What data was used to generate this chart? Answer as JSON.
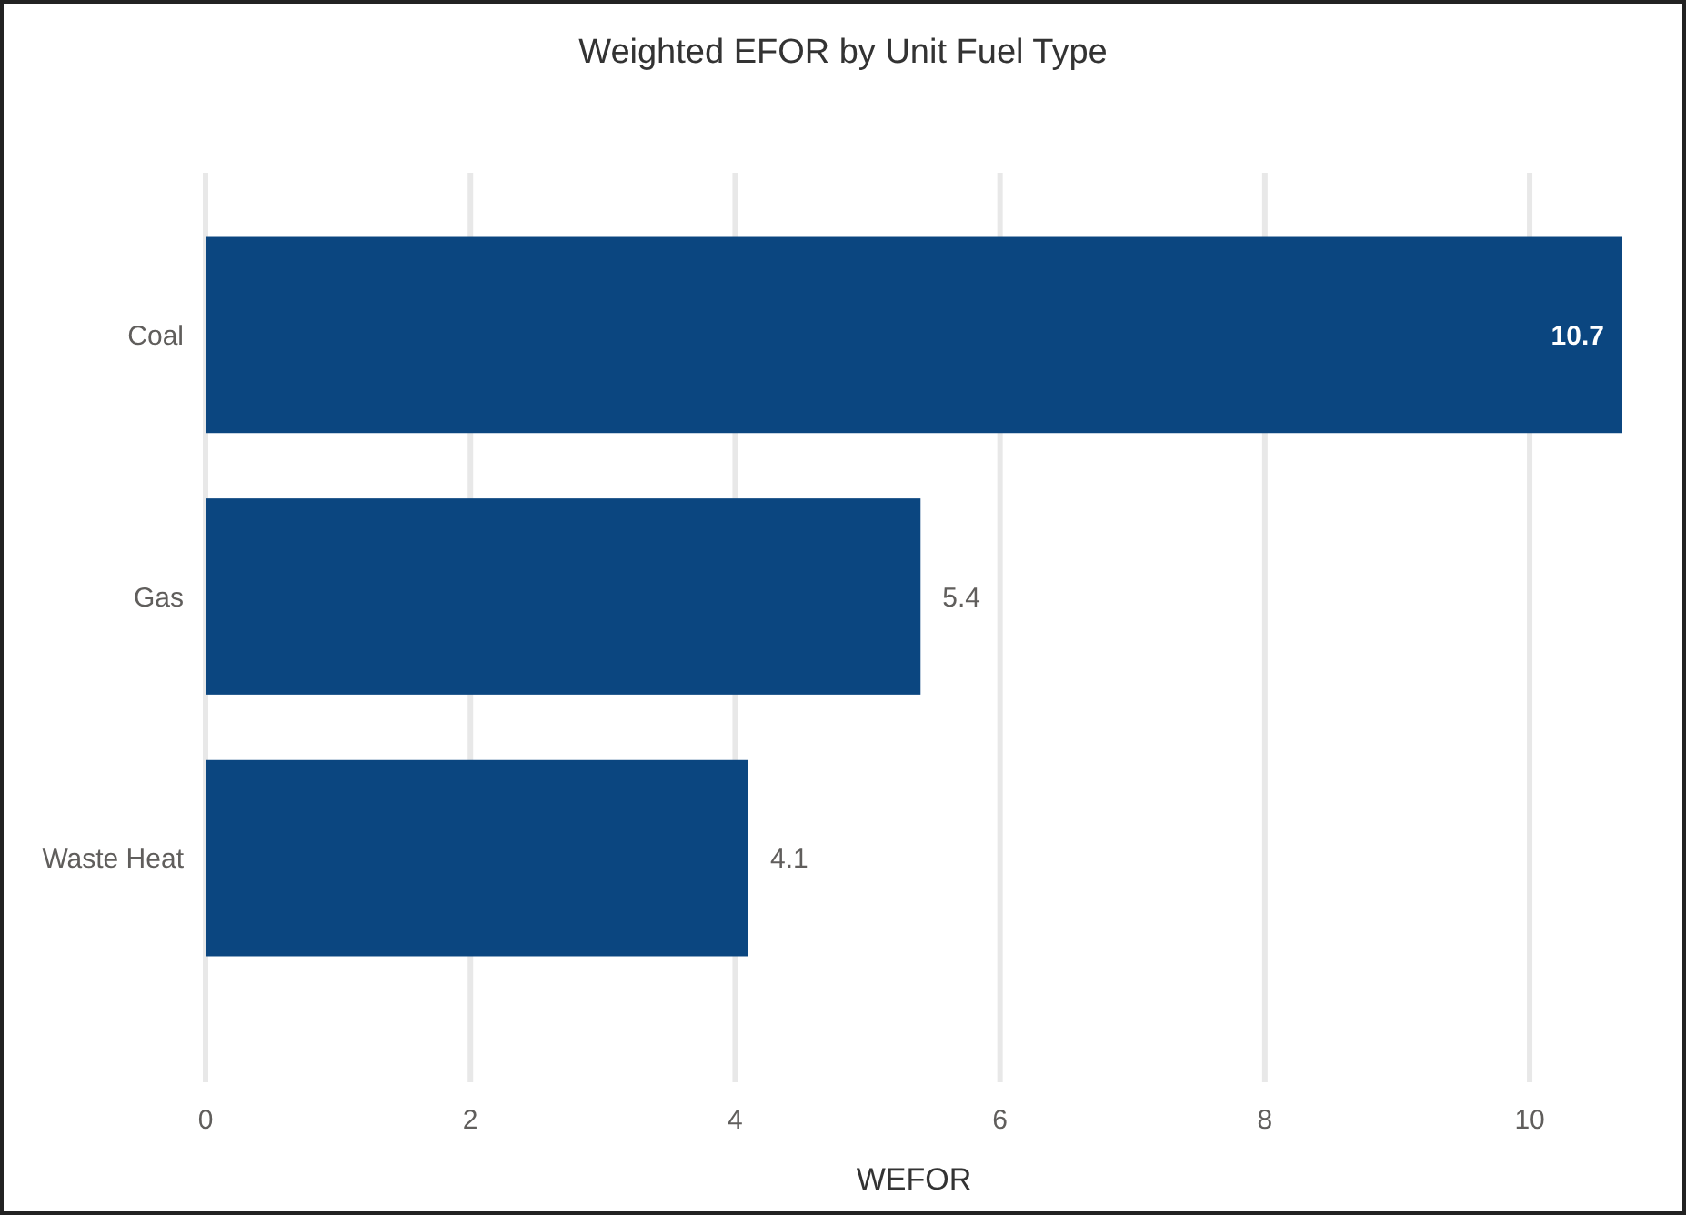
{
  "chart_data": {
    "type": "bar",
    "orientation": "horizontal",
    "title": "Weighted EFOR by Unit Fuel Type",
    "xlabel": "WEFOR",
    "categories": [
      "Coal",
      "Gas",
      "Waste Heat"
    ],
    "values": [
      10.7,
      5.4,
      4.1
    ],
    "color": "#0b4680",
    "xlim": [
      0,
      10.7
    ],
    "xticks": [
      0,
      2,
      4,
      6,
      8,
      10
    ],
    "grid": "x",
    "data_labels": true
  }
}
